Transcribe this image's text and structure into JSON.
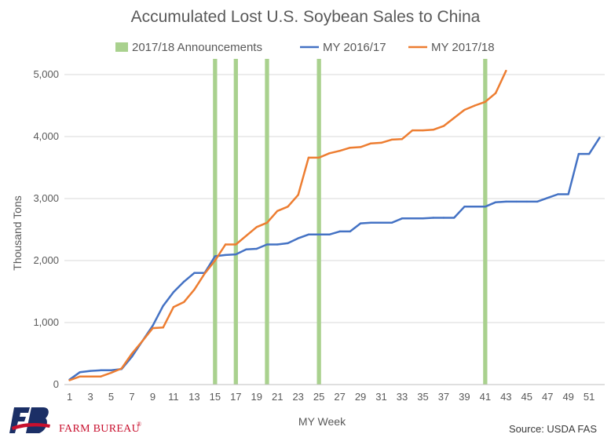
{
  "chart_data": {
    "type": "line",
    "title": "Accumulated Lost U.S. Soybean Sales to China",
    "xlabel": "MY Week",
    "ylabel": "Thousand Tons",
    "xlim": [
      1,
      52
    ],
    "ylim": [
      0,
      5000
    ],
    "x_ticks": [
      1,
      3,
      5,
      7,
      9,
      11,
      13,
      15,
      17,
      19,
      21,
      23,
      25,
      27,
      29,
      31,
      33,
      35,
      37,
      39,
      41,
      43,
      45,
      47,
      49,
      51
    ],
    "y_ticks": [
      0,
      1000,
      2000,
      3000,
      4000,
      5000
    ],
    "y_tick_labels": [
      "0",
      "1,000",
      "2,000",
      "3,000",
      "4,000",
      "5,000"
    ],
    "legend_position": "top",
    "grid": "horizontal",
    "announcements": {
      "name": "2017/18 Announcements",
      "color": "#a9d18e",
      "weeks": [
        15,
        17,
        20,
        25,
        41
      ]
    },
    "series": [
      {
        "name": "MY 2016/17",
        "color": "#4472c4",
        "x": [
          1,
          2,
          3,
          4,
          5,
          6,
          7,
          8,
          9,
          10,
          11,
          12,
          13,
          14,
          15,
          16,
          17,
          18,
          19,
          20,
          21,
          22,
          23,
          24,
          25,
          26,
          27,
          28,
          29,
          30,
          31,
          32,
          33,
          34,
          35,
          36,
          37,
          38,
          39,
          40,
          41,
          42,
          43,
          44,
          45,
          46,
          47,
          48,
          49,
          50,
          51,
          52
        ],
        "values": [
          80,
          200,
          220,
          230,
          230,
          250,
          450,
          700,
          950,
          1270,
          1490,
          1660,
          1800,
          1800,
          2070,
          2090,
          2100,
          2180,
          2190,
          2260,
          2260,
          2280,
          2360,
          2420,
          2420,
          2420,
          2470,
          2470,
          2600,
          2610,
          2610,
          2610,
          2680,
          2680,
          2680,
          2690,
          2690,
          2690,
          2870,
          2870,
          2870,
          2940,
          2950,
          2950,
          2950,
          2950,
          3010,
          3070,
          3070,
          3720,
          3720,
          3980
        ]
      },
      {
        "name": "MY 2017/18",
        "color": "#ed7d31",
        "x": [
          1,
          2,
          3,
          4,
          5,
          6,
          7,
          8,
          9,
          10,
          11,
          12,
          13,
          14,
          15,
          16,
          17,
          18,
          19,
          20,
          21,
          22,
          23,
          24,
          25,
          26,
          27,
          28,
          29,
          30,
          31,
          32,
          33,
          34,
          35,
          36,
          37,
          38,
          39,
          40,
          41,
          42,
          43
        ],
        "values": [
          70,
          130,
          130,
          130,
          190,
          260,
          500,
          700,
          910,
          920,
          1250,
          1330,
          1530,
          1790,
          2000,
          2260,
          2260,
          2400,
          2540,
          2610,
          2800,
          2870,
          3060,
          3660,
          3660,
          3730,
          3770,
          3820,
          3830,
          3890,
          3900,
          3950,
          3960,
          4100,
          4100,
          4110,
          4170,
          4300,
          4430,
          4500,
          4560,
          4700,
          5060
        ]
      }
    ]
  },
  "branding": {
    "org_name": "FARM BUREAU",
    "registered_mark": "®",
    "source": "Source: USDA FAS"
  }
}
